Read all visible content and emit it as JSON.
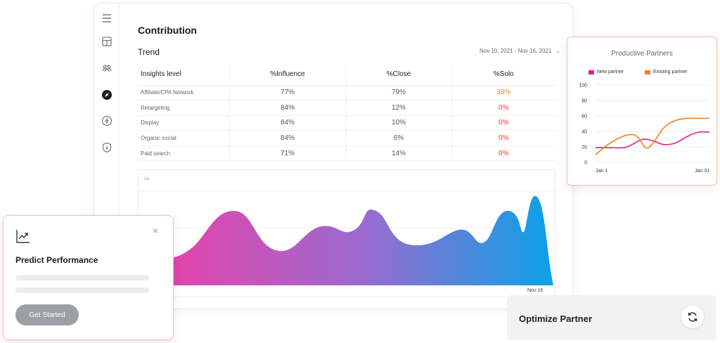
{
  "main": {
    "title": "Contribution",
    "trend_title": "Trend",
    "date_range": "Nov 10, 2021 - Nov 16, 2021",
    "table": {
      "headers": [
        "Insights level",
        "%Influence",
        "%Close",
        "%Solo"
      ],
      "rows": [
        {
          "level": "Affiliate/CPA Network",
          "influence": "77%",
          "close": "79%",
          "solo": "38%",
          "solo_color": "orange"
        },
        {
          "level": "Retargeting",
          "influence": "84%",
          "close": "12%",
          "solo": "0%",
          "solo_color": "red"
        },
        {
          "level": "Display",
          "influence": "84%",
          "close": "10%",
          "solo": "0%",
          "solo_color": "red"
        },
        {
          "level": "Organic social",
          "influence": "84%",
          "close": "6%",
          "solo": "0%",
          "solo_color": "red"
        },
        {
          "level": "Paid search",
          "influence": "71%",
          "close": "14%",
          "solo": "0%",
          "solo_color": "red"
        }
      ]
    },
    "area_chart": {
      "y_max_label": "1dd",
      "x_end_label": "Nov 16",
      "gradient": [
        "#f03ea5",
        "#9a6bd0",
        "#0aa2e6"
      ]
    }
  },
  "sidebar": {
    "icons": [
      "menu-icon",
      "layout-icon",
      "users-icon",
      "compass-icon",
      "lightning-icon",
      "shield-icon"
    ]
  },
  "productive_partners": {
    "title": "Productive Partners",
    "chart_data": {
      "type": "line",
      "title": "Productive Partners",
      "x_tick_labels": [
        "Jan 1",
        "Jan 31"
      ],
      "y_ticks": [
        0,
        20,
        40,
        60,
        80,
        100
      ],
      "ylim": [
        0,
        100
      ],
      "grid": true,
      "legend": "top",
      "series": [
        {
          "name": "New partner",
          "color": "#e91e8c",
          "points": [
            [
              0,
              19
            ],
            [
              0.1,
              19
            ],
            [
              0.25,
              19
            ],
            [
              0.32,
              23
            ],
            [
              0.42,
              30
            ],
            [
              0.52,
              27
            ],
            [
              0.6,
              23
            ],
            [
              0.7,
              25
            ],
            [
              0.8,
              33
            ],
            [
              0.9,
              39
            ],
            [
              1.0,
              39
            ]
          ]
        },
        {
          "name": "Existing partner",
          "color": "#f47e1f",
          "points": [
            [
              0,
              10
            ],
            [
              0.1,
              22
            ],
            [
              0.2,
              31
            ],
            [
              0.3,
              36
            ],
            [
              0.37,
              33
            ],
            [
              0.44,
              19
            ],
            [
              0.5,
              24
            ],
            [
              0.6,
              45
            ],
            [
              0.7,
              54
            ],
            [
              0.8,
              57
            ],
            [
              0.9,
              57
            ],
            [
              1.0,
              57
            ]
          ]
        }
      ]
    }
  },
  "predict": {
    "title": "Predict Performance",
    "close_symbol": "×",
    "button_label": "Get Started"
  },
  "optimize": {
    "title": "Optimize Partner"
  }
}
